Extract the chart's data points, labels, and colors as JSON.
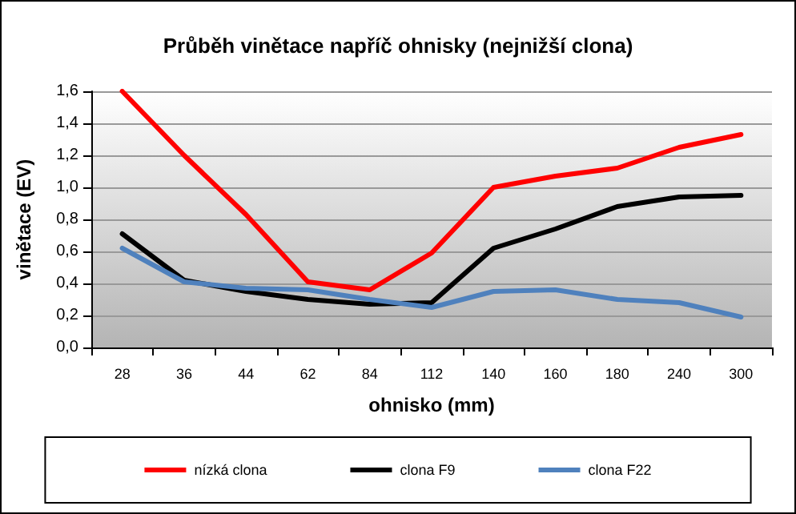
{
  "chart_data": {
    "type": "line",
    "title": "Průběh vinětace napříč ohnisky (nejnižší clona)",
    "xlabel": "ohnisko (mm)",
    "ylabel": "vinětace (EV)",
    "categories": [
      "28",
      "36",
      "44",
      "62",
      "84",
      "112",
      "140",
      "160",
      "180",
      "240",
      "300"
    ],
    "series": [
      {
        "name": "nízká clona",
        "color": "#ff0000",
        "values": [
          1.6,
          1.2,
          0.83,
          0.41,
          0.36,
          0.59,
          1.0,
          1.07,
          1.12,
          1.25,
          1.33
        ]
      },
      {
        "name": "clona F9",
        "color": "#000000",
        "values": [
          0.71,
          0.42,
          0.35,
          0.3,
          0.27,
          0.28,
          0.62,
          0.74,
          0.88,
          0.94,
          0.95
        ]
      },
      {
        "name": "clona F22",
        "color": "#4f81bd",
        "values": [
          0.62,
          0.41,
          0.37,
          0.36,
          0.3,
          0.25,
          0.35,
          0.36,
          0.3,
          0.28,
          0.19
        ]
      }
    ],
    "ylim": [
      0,
      1.6
    ],
    "yticks": [
      {
        "value": 0,
        "label": "0,0"
      },
      {
        "value": 0.2,
        "label": "0,2"
      },
      {
        "value": 0.4,
        "label": "0,4"
      },
      {
        "value": 0.6,
        "label": "0,6"
      },
      {
        "value": 0.8,
        "label": "0,8"
      },
      {
        "value": 1.0,
        "label": "1,0"
      },
      {
        "value": 1.2,
        "label": "1,2"
      },
      {
        "value": 1.4,
        "label": "1,4"
      },
      {
        "value": 1.6,
        "label": "1,6"
      }
    ],
    "grid": "y",
    "legend": "bottom",
    "marker": "none",
    "line_style": "solid"
  }
}
